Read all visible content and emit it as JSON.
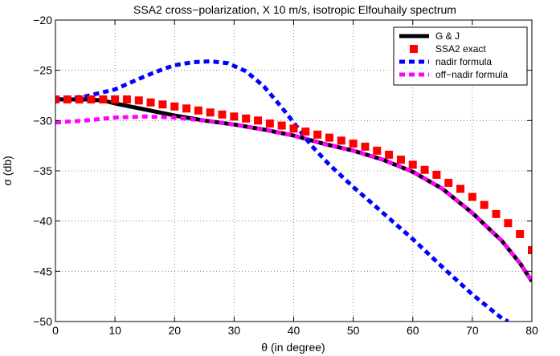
{
  "chart_data": {
    "type": "line",
    "title": "SSA2 cross−polarization, X 10 m/s, isotropic Elfouhaily spectrum",
    "xlabel": "θ (in degree)",
    "ylabel": "σ (db)",
    "xlim": [
      0,
      80
    ],
    "ylim": [
      -50,
      -20
    ],
    "xticks": [
      0,
      10,
      20,
      30,
      40,
      50,
      60,
      70,
      80
    ],
    "yticks": [
      -50,
      -45,
      -40,
      -35,
      -30,
      -25,
      -20
    ],
    "xtick_labels": [
      "0",
      "10",
      "20",
      "30",
      "40",
      "50",
      "60",
      "70",
      "80"
    ],
    "ytick_labels": [
      "−50",
      "−45",
      "−40",
      "−35",
      "−30",
      "−25",
      "−20"
    ],
    "grid": true,
    "legend_position": "top-right",
    "series": [
      {
        "name": "G & J",
        "style": "solid",
        "color": "#000000",
        "x": [
          0,
          5,
          8,
          10,
          15,
          20,
          25,
          30,
          35,
          40,
          45,
          50,
          55,
          60,
          65,
          70,
          75,
          78,
          80
        ],
        "y": [
          -27.9,
          -27.9,
          -28.0,
          -28.3,
          -28.9,
          -29.5,
          -30.0,
          -30.4,
          -30.9,
          -31.5,
          -32.3,
          -33.0,
          -33.9,
          -35.1,
          -36.8,
          -39.2,
          -42.0,
          -44.2,
          -46.0
        ]
      },
      {
        "name": "SSA2 exact",
        "style": "square-marker",
        "color": "#ff0000",
        "x": [
          0,
          2,
          4,
          6,
          8,
          10,
          12,
          14,
          16,
          18,
          20,
          22,
          24,
          26,
          28,
          30,
          32,
          34,
          36,
          38,
          40,
          42,
          44,
          46,
          48,
          50,
          52,
          54,
          56,
          58,
          60,
          62,
          64,
          66,
          68,
          70,
          72,
          74,
          76,
          78,
          80
        ],
        "y": [
          -27.9,
          -27.9,
          -27.9,
          -27.9,
          -27.9,
          -27.9,
          -27.9,
          -28.0,
          -28.2,
          -28.4,
          -28.6,
          -28.8,
          -29.0,
          -29.2,
          -29.4,
          -29.6,
          -29.8,
          -30.0,
          -30.3,
          -30.5,
          -30.8,
          -31.1,
          -31.4,
          -31.7,
          -32.0,
          -32.3,
          -32.6,
          -33.0,
          -33.4,
          -33.9,
          -34.4,
          -34.9,
          -35.4,
          -36.2,
          -36.8,
          -37.6,
          -38.4,
          -39.3,
          -40.2,
          -41.3,
          -42.9
        ]
      },
      {
        "name": "nadir formula",
        "style": "dashed",
        "color": "#0000ff",
        "x": [
          0,
          5,
          10,
          15,
          18,
          20,
          23,
          26,
          29,
          32,
          35,
          38,
          40,
          43,
          46,
          50,
          55,
          60,
          65,
          70,
          75,
          76
        ],
        "y": [
          -27.9,
          -27.6,
          -26.9,
          -25.6,
          -24.9,
          -24.5,
          -24.2,
          -24.1,
          -24.3,
          -25.1,
          -26.6,
          -28.7,
          -30.2,
          -32.5,
          -34.4,
          -36.6,
          -39.2,
          -41.8,
          -44.6,
          -47.3,
          -49.7,
          -50.0
        ]
      },
      {
        "name": "off−nadir formula",
        "style": "dashed",
        "color": "#ff00ff",
        "x": [
          0,
          5,
          10,
          15,
          20,
          25,
          30,
          35,
          40,
          45,
          50,
          55,
          60,
          65,
          70,
          75,
          78,
          80
        ],
        "y": [
          -30.2,
          -30.0,
          -29.7,
          -29.6,
          -29.7,
          -30.0,
          -30.4,
          -30.9,
          -31.5,
          -32.3,
          -33.0,
          -33.9,
          -35.1,
          -36.8,
          -39.2,
          -42.0,
          -44.2,
          -46.0
        ]
      }
    ]
  }
}
